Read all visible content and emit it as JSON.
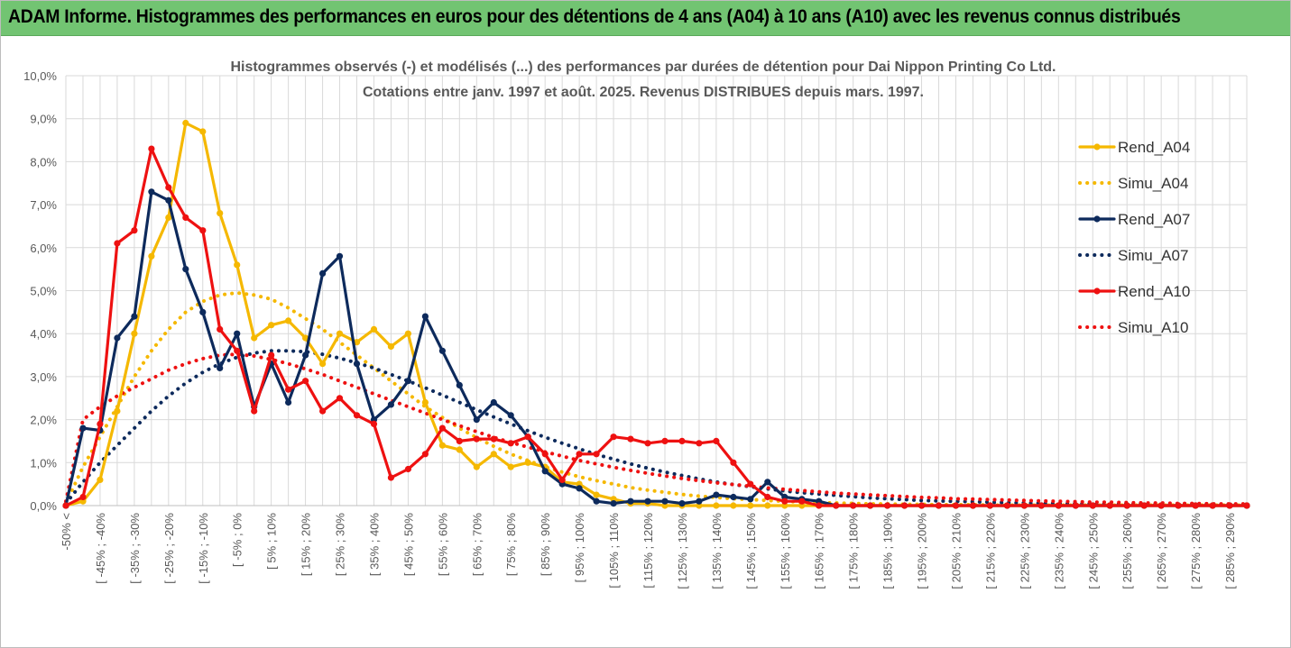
{
  "banner": {
    "title": "ADAM Informe. Histogrammes des performances en euros pour des détentions de 4 ans (A04) à 10 ans (A10) avec les revenus connus distribués"
  },
  "colors": {
    "banner": "#72c472",
    "A04": "#f5b800",
    "A07": "#0d2a5c",
    "A10": "#ee1111",
    "grid": "#d9d9d9"
  },
  "chart_data": {
    "type": "line",
    "title": "Histogrammes observés (-) et modélisés (...) des performances par durées de détention pour Dai Nippon Printing Co Ltd.",
    "subtitle": "Cotations entre janv. 1997 et août. 2025. Revenus DISTRIBUES depuis mars. 1997.",
    "xlabel": "",
    "ylabel": "",
    "ylim": [
      0,
      10
    ],
    "y_ticks": [
      "0,0%",
      "1,0%",
      "2,0%",
      "3,0%",
      "4,0%",
      "5,0%",
      "6,0%",
      "7,0%",
      "8,0%",
      "9,0%",
      "10,0%"
    ],
    "grid": true,
    "legend_position": "right",
    "x_tick_labels": [
      "-50% <",
      "[ -45% ; -40%",
      "[ -35% ; -30%",
      "[ -25% ; -20%",
      "[ -15% ; -10%",
      "[ -5% ; 0%",
      "[ 5% ; 10%",
      "[ 15% ; 20%",
      "[ 25% ; 30%",
      "[ 35% ; 40%",
      "[ 45% ; 50%",
      "[ 55% ; 60%",
      "[ 65% ; 70%",
      "[ 75% ; 80%",
      "[ 85% ; 90%",
      "[ 95% ; 100%",
      "[ 105% ; 110%",
      "[ 115% ; 120%",
      "[ 125% ; 130%",
      "[ 135% ; 140%",
      "[ 145% ; 150%",
      "[ 155% ; 160%",
      "[ 165% ; 170%",
      "[ 175% ; 180%",
      "[ 185% ; 190%",
      "[ 195% ; 200%",
      "[ 205% ; 210%",
      "[ 215% ; 220%",
      "[ 225% ; 230%",
      "[ 235% ; 240%",
      "[ 245% ; 250%",
      "[ 255% ; 260%",
      "[ 265% ; 270%",
      "[ 275% ; 280%",
      "[ 285% ; 290%"
    ],
    "series": [
      {
        "name": "Rend_A04",
        "style": "solid",
        "color": "#f5b800",
        "values": [
          0,
          0.1,
          0.6,
          2.2,
          4.0,
          5.8,
          6.7,
          8.9,
          8.7,
          6.8,
          5.6,
          3.9,
          4.2,
          4.3,
          3.9,
          3.3,
          4.0,
          3.8,
          4.1,
          3.7,
          4.0,
          2.4,
          1.4,
          1.3,
          0.9,
          1.2,
          0.9,
          1.0,
          0.9,
          0.55,
          0.5,
          0.25,
          0.15,
          0.05,
          0.05,
          0,
          0,
          0,
          0,
          0,
          0,
          0,
          0,
          0,
          0,
          0,
          0,
          0,
          0,
          0,
          0,
          0,
          0,
          0,
          0,
          0,
          0,
          0,
          0,
          0,
          0,
          0,
          0,
          0,
          0,
          0,
          0,
          0,
          0,
          0
        ]
      },
      {
        "name": "Simu_A04",
        "style": "dotted",
        "color": "#f5b800",
        "values": [
          0.05,
          0.9,
          1.6,
          2.3,
          3.0,
          3.6,
          4.1,
          4.5,
          4.75,
          4.9,
          4.95,
          4.9,
          4.8,
          4.6,
          4.35,
          4.1,
          3.8,
          3.5,
          3.2,
          2.9,
          2.6,
          2.3,
          2.05,
          1.8,
          1.58,
          1.38,
          1.2,
          1.05,
          0.9,
          0.78,
          0.67,
          0.58,
          0.5,
          0.42,
          0.36,
          0.31,
          0.26,
          0.22,
          0.19,
          0.16,
          0.14,
          0.12,
          0.1,
          0.08,
          0.07,
          0.06,
          0.05,
          0.04,
          0.04,
          0.03,
          0.03,
          0.02,
          0.02,
          0.02,
          0.01,
          0.01,
          0.01,
          0.01,
          0.01,
          0.01,
          0.01,
          0.01,
          0.01,
          0.01,
          0.01,
          0.01,
          0.01,
          0.01,
          0.01,
          0.01
        ]
      },
      {
        "name": "Rend_A07",
        "style": "solid",
        "color": "#0d2a5c",
        "values": [
          0,
          1.8,
          1.75,
          3.9,
          4.4,
          7.3,
          7.1,
          5.5,
          4.5,
          3.2,
          4.0,
          2.3,
          3.3,
          2.4,
          3.5,
          5.4,
          5.8,
          3.3,
          2.0,
          2.35,
          2.9,
          4.4,
          3.6,
          2.8,
          2.0,
          2.4,
          2.1,
          1.6,
          0.8,
          0.5,
          0.4,
          0.1,
          0.05,
          0.1,
          0.1,
          0.1,
          0.05,
          0.1,
          0.25,
          0.2,
          0.15,
          0.55,
          0.2,
          0.15,
          0.1,
          0,
          0,
          0,
          0,
          0,
          0,
          0,
          0,
          0,
          0,
          0,
          0,
          0,
          0,
          0,
          0,
          0,
          0,
          0,
          0,
          0,
          0,
          0,
          0,
          0
        ]
      },
      {
        "name": "Simu_A07",
        "style": "dotted",
        "color": "#0d2a5c",
        "values": [
          0.05,
          0.55,
          1.0,
          1.4,
          1.8,
          2.2,
          2.55,
          2.85,
          3.1,
          3.3,
          3.45,
          3.55,
          3.6,
          3.6,
          3.58,
          3.52,
          3.43,
          3.32,
          3.2,
          3.05,
          2.9,
          2.74,
          2.57,
          2.4,
          2.23,
          2.06,
          1.9,
          1.74,
          1.59,
          1.45,
          1.32,
          1.19,
          1.08,
          0.97,
          0.87,
          0.78,
          0.7,
          0.62,
          0.55,
          0.49,
          0.44,
          0.39,
          0.34,
          0.3,
          0.27,
          0.24,
          0.21,
          0.18,
          0.16,
          0.14,
          0.12,
          0.11,
          0.1,
          0.09,
          0.08,
          0.07,
          0.06,
          0.05,
          0.05,
          0.04,
          0.04,
          0.03,
          0.03,
          0.03,
          0.02,
          0.02,
          0.02,
          0.02,
          0.02,
          0.01
        ]
      },
      {
        "name": "Rend_A10",
        "style": "solid",
        "color": "#ee1111",
        "values": [
          0,
          0.2,
          1.9,
          6.1,
          6.4,
          8.3,
          7.4,
          6.7,
          6.4,
          4.1,
          3.6,
          2.2,
          3.5,
          2.7,
          2.9,
          2.2,
          2.5,
          2.1,
          1.9,
          0.65,
          0.85,
          1.2,
          1.8,
          1.5,
          1.55,
          1.55,
          1.45,
          1.6,
          1.2,
          0.6,
          1.2,
          1.2,
          1.6,
          1.55,
          1.45,
          1.5,
          1.5,
          1.45,
          1.5,
          1.0,
          0.5,
          0.2,
          0.1,
          0.1,
          0,
          0,
          0,
          0,
          0,
          0,
          0,
          0,
          0,
          0,
          0,
          0,
          0,
          0,
          0,
          0,
          0,
          0,
          0,
          0,
          0,
          0,
          0,
          0,
          0,
          0
        ]
      },
      {
        "name": "Simu_A10",
        "style": "dotted",
        "color": "#ee1111",
        "values": [
          0.1,
          2.0,
          2.3,
          2.55,
          2.75,
          2.95,
          3.15,
          3.3,
          3.42,
          3.5,
          3.52,
          3.48,
          3.4,
          3.3,
          3.18,
          3.05,
          2.9,
          2.75,
          2.6,
          2.45,
          2.3,
          2.15,
          2.0,
          1.86,
          1.72,
          1.59,
          1.47,
          1.36,
          1.25,
          1.15,
          1.05,
          0.97,
          0.89,
          0.82,
          0.75,
          0.69,
          0.63,
          0.58,
          0.53,
          0.49,
          0.45,
          0.41,
          0.38,
          0.35,
          0.32,
          0.29,
          0.27,
          0.25,
          0.23,
          0.21,
          0.19,
          0.18,
          0.16,
          0.15,
          0.14,
          0.13,
          0.12,
          0.11,
          0.1,
          0.09,
          0.08,
          0.08,
          0.07,
          0.06,
          0.06,
          0.05,
          0.05,
          0.04,
          0.04,
          0.04
        ]
      }
    ]
  }
}
